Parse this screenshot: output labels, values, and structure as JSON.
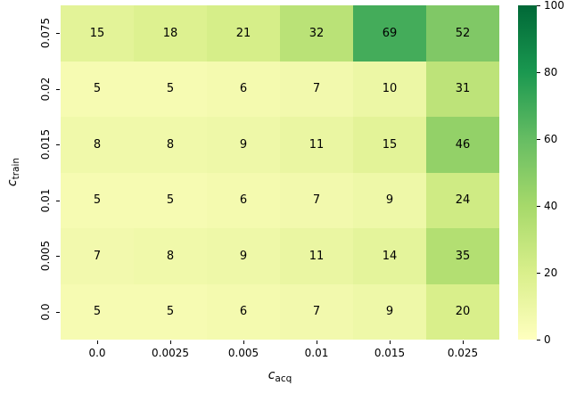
{
  "chart_data": {
    "type": "heatmap",
    "x_categories": [
      "0.0",
      "0.0025",
      "0.005",
      "0.01",
      "0.015",
      "0.025"
    ],
    "y_categories": [
      "0.075",
      "0.02",
      "0.015",
      "0.01",
      "0.005",
      "0.0"
    ],
    "values": [
      [
        15,
        18,
        21,
        32,
        69,
        52
      ],
      [
        5,
        5,
        6,
        7,
        10,
        31
      ],
      [
        8,
        8,
        9,
        11,
        15,
        46
      ],
      [
        5,
        5,
        6,
        7,
        9,
        24
      ],
      [
        7,
        8,
        9,
        11,
        14,
        35
      ],
      [
        5,
        5,
        6,
        7,
        9,
        20
      ]
    ],
    "xlabel": {
      "main": "c",
      "sub": "acq"
    },
    "ylabel": {
      "main": "c",
      "sub": "train"
    },
    "annotation_color": "#000000",
    "colorbar": {
      "min": 0,
      "max": 100,
      "ticks": [
        0,
        20,
        40,
        60,
        80,
        100
      ],
      "stops": [
        {
          "v": 0,
          "color": "#ffffbf"
        },
        {
          "v": 20,
          "color": "#d9ef8b"
        },
        {
          "v": 40,
          "color": "#a6d96a"
        },
        {
          "v": 60,
          "color": "#66bd63"
        },
        {
          "v": 80,
          "color": "#1a9850"
        },
        {
          "v": 100,
          "color": "#006837"
        }
      ]
    },
    "grid": false,
    "legend_position": "right-colorbar"
  }
}
